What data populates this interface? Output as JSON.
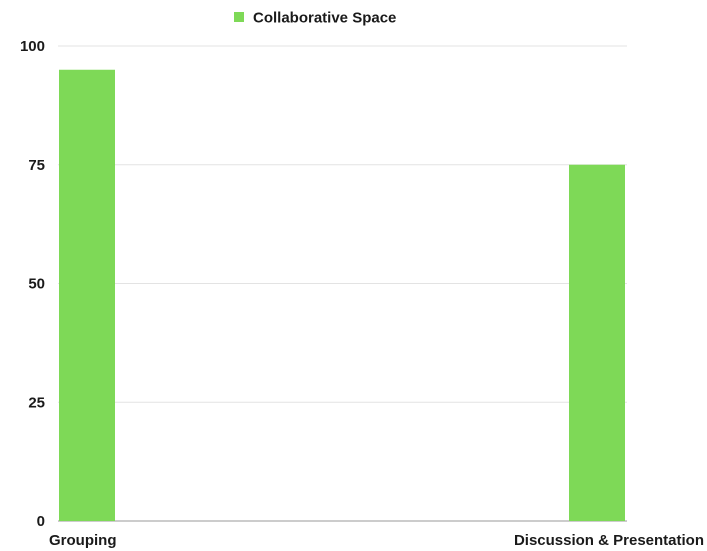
{
  "chart_data": {
    "type": "bar",
    "categories": [
      "Grouping",
      "Discussion & Presentation"
    ],
    "series": [
      {
        "name": "Collaborative Space",
        "values": [
          95,
          75
        ],
        "color": "#7ed957"
      }
    ],
    "ylim": [
      0,
      100
    ],
    "yticks": [
      0,
      25,
      50,
      75,
      100
    ],
    "grid": true,
    "legend": "top-center",
    "title": "",
    "xlabel": "",
    "ylabel": ""
  }
}
